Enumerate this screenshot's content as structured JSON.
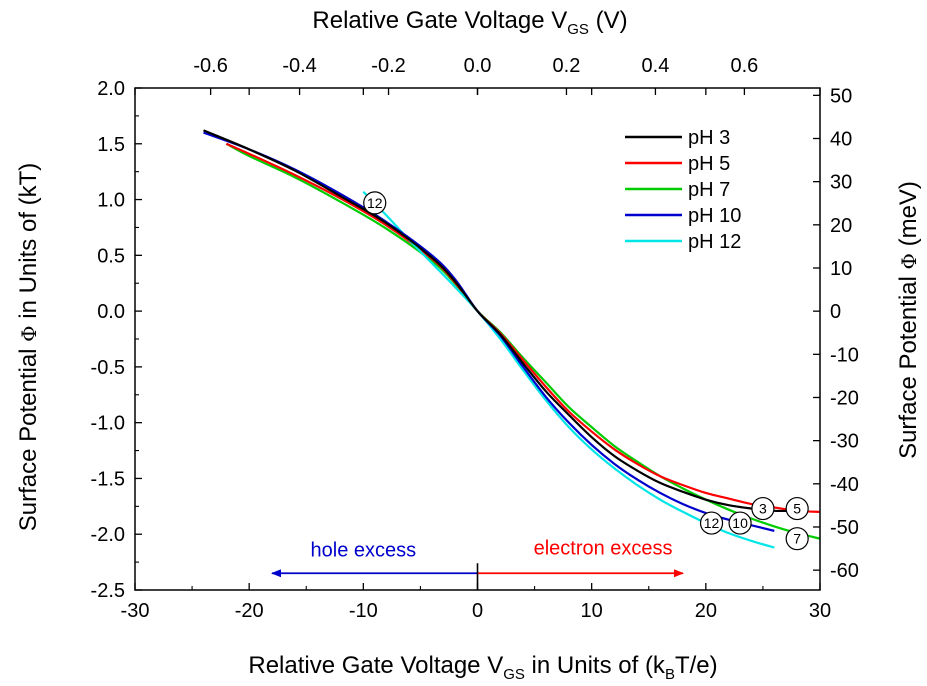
{
  "chart_data": {
    "type": "line",
    "xlabel": {
      "main": "Relative Gate Voltage V",
      "sub": "GS",
      "rest": " in Units of (k",
      "sub2": "B",
      "rest2": "T/e)"
    },
    "x2label": {
      "main": "Relative Gate Voltage V",
      "sub": "GS",
      "rest": " (V)"
    },
    "ylabel": {
      "main": "Surface Potential ",
      "sym": "Φ",
      "rest": " in Units of (kT)"
    },
    "y2label": {
      "main": "Surface Potential ",
      "sym": "Φ",
      "rest": " (meV)"
    },
    "xlim": [
      -30,
      30
    ],
    "ylim": [
      -2.5,
      2.0
    ],
    "x2lim": [
      -0.77,
      0.77
    ],
    "y2lim": [
      -64.6,
      51.7
    ],
    "x_ticks": [
      "-30",
      "-20",
      "-10",
      "0",
      "10",
      "20",
      "30"
    ],
    "x_tick_values": [
      -30,
      -20,
      -10,
      0,
      10,
      20,
      30
    ],
    "y_ticks": [
      "2.0",
      "1.5",
      "1.0",
      "0.5",
      "0.0",
      "-0.5",
      "-1.0",
      "-1.5",
      "-2.0",
      "-2.5"
    ],
    "y_tick_values": [
      2.0,
      1.5,
      1.0,
      0.5,
      0.0,
      -0.5,
      -1.0,
      -1.5,
      -2.0,
      -2.5
    ],
    "x2_ticks": [
      "-0.6",
      "-0.4",
      "-0.2",
      "0.0",
      "0.2",
      "0.4",
      "0.6"
    ],
    "x2_tick_values": [
      -0.6,
      -0.4,
      -0.2,
      0.0,
      0.2,
      0.4,
      0.6
    ],
    "y2_ticks": [
      "50",
      "40",
      "30",
      "20",
      "10",
      "0",
      "-10",
      "-20",
      "-30",
      "-40",
      "-50",
      "-60"
    ],
    "y2_tick_values": [
      50,
      40,
      30,
      20,
      10,
      0,
      -10,
      -20,
      -30,
      -40,
      -50,
      -60
    ],
    "series": [
      {
        "name": "pH 3",
        "color": "#000000",
        "x": [
          -24,
          -20,
          -16,
          -12,
          -8,
          -4,
          -2,
          0,
          2,
          4,
          6,
          8,
          10,
          12,
          14,
          16,
          18,
          20,
          22,
          24,
          26,
          28
        ],
        "y": [
          1.62,
          1.45,
          1.26,
          1.03,
          0.79,
          0.48,
          0.27,
          0.0,
          -0.21,
          -0.47,
          -0.72,
          -0.93,
          -1.13,
          -1.3,
          -1.43,
          -1.54,
          -1.62,
          -1.69,
          -1.74,
          -1.77,
          -1.79,
          -1.79
        ]
      },
      {
        "name": "pH 5",
        "color": "#ff0000",
        "x": [
          -22,
          -20,
          -16,
          -12,
          -8,
          -4,
          -2,
          0,
          2,
          4,
          6,
          8,
          10,
          12,
          14,
          16,
          18,
          20,
          22,
          24,
          26,
          28,
          30
        ],
        "y": [
          1.5,
          1.41,
          1.22,
          1.01,
          0.77,
          0.47,
          0.26,
          0.0,
          -0.2,
          -0.44,
          -0.68,
          -0.9,
          -1.08,
          -1.24,
          -1.37,
          -1.48,
          -1.56,
          -1.63,
          -1.68,
          -1.73,
          -1.76,
          -1.79,
          -1.8
        ]
      },
      {
        "name": "pH 7",
        "color": "#00cc00",
        "x": [
          -22,
          -20,
          -16,
          -12,
          -8,
          -4,
          -2,
          0,
          2,
          4,
          6,
          8,
          10,
          12,
          14,
          16,
          18,
          20,
          22,
          24,
          26,
          28,
          30
        ],
        "y": [
          1.5,
          1.39,
          1.2,
          0.98,
          0.74,
          0.45,
          0.25,
          0.0,
          -0.19,
          -0.42,
          -0.64,
          -0.86,
          -1.04,
          -1.21,
          -1.35,
          -1.48,
          -1.59,
          -1.69,
          -1.78,
          -1.86,
          -1.93,
          -1.99,
          -2.04
        ]
      },
      {
        "name": "pH 10",
        "color": "#0000cc",
        "x": [
          -24,
          -20,
          -16,
          -12,
          -8,
          -4,
          -2,
          0,
          2,
          4,
          6,
          8,
          10,
          12,
          14,
          16,
          18,
          20,
          22,
          24,
          26
        ],
        "y": [
          1.6,
          1.45,
          1.27,
          1.05,
          0.8,
          0.5,
          0.29,
          0.0,
          -0.22,
          -0.5,
          -0.77,
          -1.0,
          -1.2,
          -1.37,
          -1.51,
          -1.63,
          -1.73,
          -1.81,
          -1.87,
          -1.92,
          -1.97
        ]
      },
      {
        "name": "pH 12",
        "color": "#00e6e6",
        "x": [
          -10,
          -8,
          -6,
          -4,
          -2,
          0,
          2,
          4,
          6,
          8,
          10,
          12,
          14,
          16,
          18,
          20,
          22,
          24,
          26
        ],
        "y": [
          1.07,
          0.86,
          0.64,
          0.43,
          0.22,
          0.0,
          -0.25,
          -0.53,
          -0.8,
          -1.04,
          -1.24,
          -1.41,
          -1.56,
          -1.69,
          -1.8,
          -1.9,
          -1.99,
          -2.06,
          -2.12
        ]
      }
    ],
    "legend": {
      "placement": "top-right",
      "items": [
        "pH 3",
        "pH 5",
        "pH 7",
        "pH 10",
        "pH 12"
      ]
    },
    "markers": [
      {
        "label": "12",
        "x": -9,
        "y": 0.97
      },
      {
        "label": "3",
        "x": 25,
        "y": -1.77
      },
      {
        "label": "5",
        "x": 28,
        "y": -1.77
      },
      {
        "label": "12",
        "x": 20.5,
        "y": -1.9
      },
      {
        "label": "10",
        "x": 23,
        "y": -1.9
      },
      {
        "label": "7",
        "x": 28,
        "y": -2.04
      }
    ],
    "annotations": {
      "hole_excess": {
        "text": "hole excess",
        "color": "#0000cc",
        "arrow_from": 0,
        "arrow_to": -18,
        "y": -2.35,
        "text_x": -10,
        "text_y": -2.2
      },
      "electron_excess": {
        "text": "electron excess",
        "color": "#ff0000",
        "arrow_from": 0,
        "arrow_to": 18,
        "y": -2.35,
        "text_x": 11,
        "text_y": -2.18
      },
      "zero_marker": {
        "x": 0,
        "y_from": -2.5,
        "y_to": -2.26
      }
    },
    "grid": false
  }
}
